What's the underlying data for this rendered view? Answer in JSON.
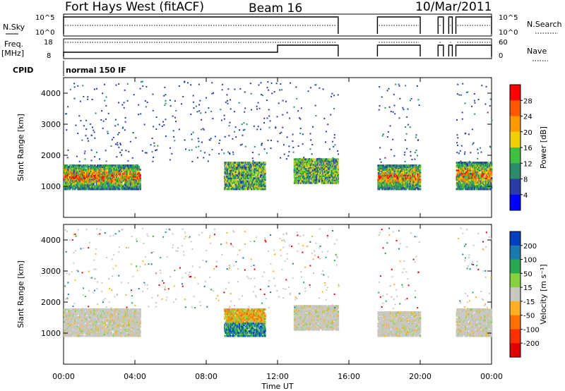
{
  "header": {
    "station": "Fort Hays West (fitACF)",
    "beam": "Beam 16",
    "date": "10/Mar/2011"
  },
  "top_panels": {
    "nsky_label": "N.Sky",
    "nsky_ticks": [
      "10^5",
      "10^0"
    ],
    "nsearch_label": "N.Search",
    "freq_label": "Freq.",
    "freq_unit": "[MHz]",
    "freq_ticks": [
      "18",
      "8"
    ],
    "nave_label": "Nave",
    "nave_ticks": [
      "60",
      "0"
    ],
    "cpid_label": "CPID",
    "cpid_value": "normal 150 IF"
  },
  "chart_data": [
    {
      "type": "heatmap",
      "name": "power",
      "ylabel": "Slant Range [km]",
      "ylim": [
        0,
        4500
      ],
      "yticks": [
        1000,
        2000,
        3000,
        4000
      ],
      "xlim": [
        0,
        24
      ],
      "colorbar": {
        "label": "Power [dB]",
        "ticks": [
          "28",
          "24",
          "20",
          "16",
          "12",
          "8",
          "4"
        ],
        "colors": [
          "#ff0000",
          "#ff5a00",
          "#ff9a00",
          "#f0d000",
          "#40c040",
          "#2a8a6a",
          "#2a3ca8",
          "#0000ff"
        ]
      },
      "regions": [
        {
          "t0": 0.0,
          "t1": 4.3,
          "r0": 900,
          "r1": 1700,
          "level": "high"
        },
        {
          "t0": 9.0,
          "t1": 11.3,
          "r0": 900,
          "r1": 1800,
          "level": "mid"
        },
        {
          "t0": 12.9,
          "t1": 15.4,
          "r0": 1100,
          "r1": 1900,
          "level": "mid"
        },
        {
          "t0": 17.6,
          "t1": 20.0,
          "r0": 900,
          "r1": 1700,
          "level": "high"
        },
        {
          "t0": 22.0,
          "t1": 24.0,
          "r0": 900,
          "r1": 1800,
          "level": "high"
        }
      ]
    },
    {
      "type": "heatmap",
      "name": "velocity",
      "ylabel": "Slant Range [km]",
      "ylim": [
        0,
        4500
      ],
      "yticks": [
        1000,
        2000,
        3000,
        4000
      ],
      "xlim": [
        0,
        24
      ],
      "xticks": [
        "00:00",
        "04:00",
        "08:00",
        "12:00",
        "16:00",
        "20:00",
        "00:00"
      ],
      "xlabel": "Time UT",
      "colorbar": {
        "label": "Velocity [m s⁻¹]",
        "ticks": [
          "200",
          "100",
          "50",
          "15",
          "-15",
          "-50",
          "-100",
          "-200"
        ],
        "colors": [
          "#0040c0",
          "#1a7ab0",
          "#2aa850",
          "#88d040",
          "#c8c8c0",
          "#ffb020",
          "#ff7000",
          "#ff3000",
          "#e00000"
        ]
      },
      "regions": [
        {
          "t0": 0.0,
          "t1": 4.3,
          "r0": 900,
          "r1": 1800,
          "level": "ground"
        },
        {
          "t0": 9.0,
          "t1": 11.3,
          "r0": 900,
          "r1": 1800,
          "level": "flow"
        },
        {
          "t0": 12.9,
          "t1": 15.4,
          "r0": 1100,
          "r1": 1900,
          "level": "ground"
        },
        {
          "t0": 17.6,
          "t1": 20.0,
          "r0": 900,
          "r1": 1700,
          "level": "ground"
        },
        {
          "t0": 22.0,
          "t1": 24.0,
          "r0": 900,
          "r1": 1800,
          "level": "ground"
        }
      ]
    }
  ]
}
